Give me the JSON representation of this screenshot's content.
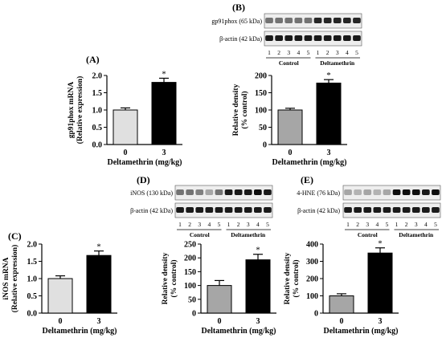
{
  "figure": {
    "panel_letters": {
      "A": "(A)",
      "B": "(B)",
      "C": "(C)",
      "D": "(D)",
      "E": "(E)"
    },
    "lane_numbers": [
      "1",
      "2",
      "3",
      "4",
      "5",
      "1",
      "2",
      "3",
      "4",
      "5"
    ],
    "group_labels": {
      "control": "Control",
      "treatment": "Deltamethrin"
    },
    "colors": {
      "control_A": "#e0e0e0",
      "control_densitometry": "#a6a6a6",
      "treatment": "#000000"
    }
  },
  "blots": [
    {
      "id": "B",
      "target_label": "gp91phox (65 kDa)",
      "loading_label": "β-actin (42 kDa)"
    },
    {
      "id": "D",
      "target_label": "iNOS (130 kDa)",
      "loading_label": "β-actin (42 kDa)"
    },
    {
      "id": "E",
      "target_label": "4-HNE (76 kDa)",
      "loading_label": "β-actin (42 kDa)"
    }
  ],
  "chart_data": [
    {
      "id": "A",
      "type": "bar",
      "categories": [
        "0",
        "3"
      ],
      "values": [
        1.0,
        1.8
      ],
      "errors": [
        0.06,
        0.12
      ],
      "significance": [
        "",
        "*"
      ],
      "ylabel": "gp91phox mRNA (Relative expression)",
      "ylabel_lines": [
        "gp91phox mRNA",
        "(Relative expression)"
      ],
      "xlabel": "Deltamethrin (mg/kg)",
      "ylim": [
        0,
        2.0
      ],
      "yticks": [
        "0.0",
        "0.5",
        "1.0",
        "1.5",
        "2.0"
      ]
    },
    {
      "id": "B-densitometry",
      "type": "bar",
      "categories": [
        "0",
        "3"
      ],
      "values": [
        100,
        178
      ],
      "errors": [
        5,
        10
      ],
      "significance": [
        "",
        "*"
      ],
      "ylabel": "Relative density (% control)",
      "ylabel_lines": [
        "Relative density",
        "(% control)"
      ],
      "xlabel": "Deltamethrin (mg/kg)",
      "ylim": [
        0,
        200
      ],
      "yticks": [
        "0",
        "50",
        "100",
        "150",
        "200"
      ]
    },
    {
      "id": "C",
      "type": "bar",
      "categories": [
        "0",
        "3"
      ],
      "values": [
        1.0,
        1.67
      ],
      "errors": [
        0.08,
        0.13
      ],
      "significance": [
        "",
        "*"
      ],
      "ylabel": "iNOS mRNA (Relative expression)",
      "ylabel_lines": [
        "iNOS mRNA",
        "(Relative expression)"
      ],
      "xlabel": "Deltamethrin (mg/kg)",
      "ylim": [
        0,
        2.0
      ],
      "yticks": [
        "0.0",
        "0.5",
        "1.0",
        "1.5",
        "2.0"
      ]
    },
    {
      "id": "D-densitometry",
      "type": "bar",
      "categories": [
        "0",
        "3"
      ],
      "values": [
        100,
        193
      ],
      "errors": [
        18,
        20
      ],
      "significance": [
        "",
        "*"
      ],
      "ylabel": "Relative density (% control)",
      "ylabel_lines": [
        "Relative density",
        "(% control)"
      ],
      "xlabel": "Deltamethrin (mg/kg)",
      "ylim": [
        0,
        250
      ],
      "yticks": [
        "0",
        "50",
        "100",
        "150",
        "200",
        "250"
      ]
    },
    {
      "id": "E-densitometry",
      "type": "bar",
      "categories": [
        "0",
        "3"
      ],
      "values": [
        100,
        348
      ],
      "errors": [
        12,
        30
      ],
      "significance": [
        "",
        "*"
      ],
      "ylabel": "Relative density (% control)",
      "ylabel_lines": [
        "Relative density",
        "(% control)"
      ],
      "xlabel": "Deltamethrin (mg/kg)",
      "ylim": [
        0,
        400
      ],
      "yticks": [
        "0",
        "100",
        "200",
        "300",
        "400"
      ]
    }
  ]
}
